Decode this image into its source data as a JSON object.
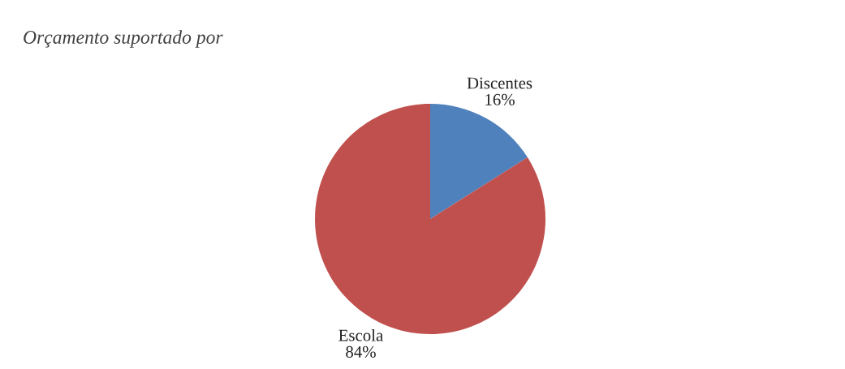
{
  "chart_data": {
    "type": "pie",
    "title": "Orçamento suportado por",
    "categories": [
      "Discentes",
      "Escola"
    ],
    "values": [
      16,
      84
    ],
    "colors": [
      "#4f81bd",
      "#c0504d"
    ],
    "value_labels": [
      "16%",
      "84%"
    ],
    "legend": false
  }
}
